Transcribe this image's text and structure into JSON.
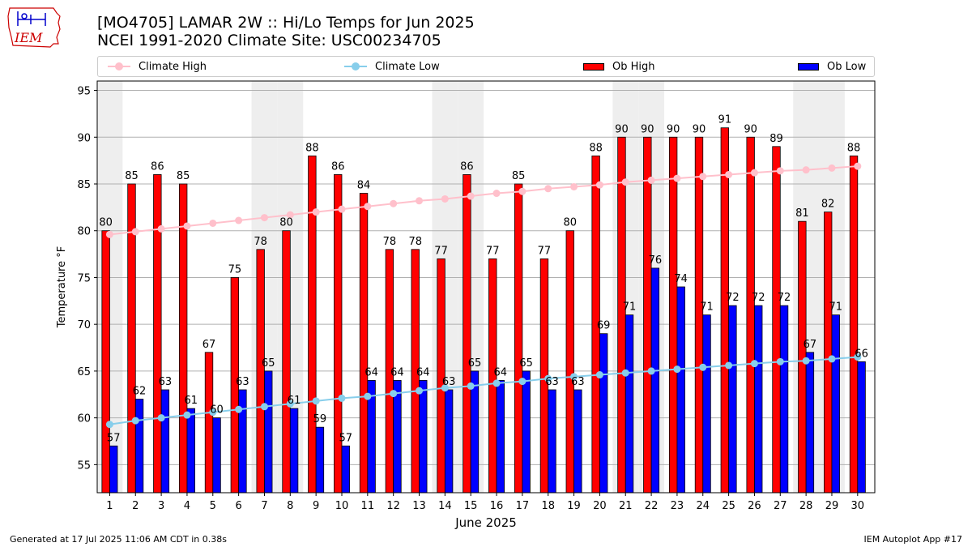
{
  "header": {
    "logo_text": "IEM",
    "title_line1": "[MO4705] LAMAR 2W :: Hi/Lo Temps for Jun 2025",
    "title_line2": "NCEI 1991-2020 Climate Site: USC00234705"
  },
  "legend": {
    "climate_high": "Climate High",
    "climate_low": "Climate Low",
    "ob_high": "Ob High",
    "ob_low": "Ob Low"
  },
  "colors": {
    "ob_high": "#ff0000",
    "ob_low": "#0000ff",
    "climate_high": "#ffc0cb",
    "climate_low": "#87ceeb",
    "weekend_band": "#eeeeee",
    "grid": "#b0b0b0"
  },
  "footer": {
    "generated": "Generated at 17 Jul 2025 11:06 AM CDT in 0.38s",
    "app": "IEM Autoplot App #17"
  },
  "chart_data": {
    "type": "bar",
    "title": "[MO4705] LAMAR 2W :: Hi/Lo Temps for Jun 2025",
    "subtitle": "NCEI 1991-2020 Climate Site: USC00234705",
    "xlabel": "June 2025",
    "ylabel": "Temperature °F",
    "ylim": [
      52,
      96
    ],
    "yticks": [
      55,
      60,
      65,
      70,
      75,
      80,
      85,
      90,
      95
    ],
    "grid": true,
    "legend_position": "top",
    "categories": [
      "1",
      "2",
      "3",
      "4",
      "5",
      "6",
      "7",
      "8",
      "9",
      "10",
      "11",
      "12",
      "13",
      "14",
      "15",
      "16",
      "17",
      "18",
      "19",
      "20",
      "21",
      "22",
      "23",
      "24",
      "25",
      "26",
      "27",
      "28",
      "29",
      "30"
    ],
    "shaded_days": [
      "1",
      "7",
      "8",
      "14",
      "15",
      "21",
      "22",
      "28",
      "29"
    ],
    "series": [
      {
        "name": "Ob High",
        "kind": "bar",
        "values": [
          80,
          85,
          86,
          85,
          67,
          75,
          78,
          80,
          88,
          86,
          84,
          78,
          78,
          77,
          86,
          77,
          85,
          77,
          80,
          88,
          90,
          90,
          90,
          90,
          91,
          90,
          89,
          81,
          82,
          88
        ]
      },
      {
        "name": "Ob Low",
        "kind": "bar",
        "values": [
          57,
          62,
          63,
          61,
          60,
          63,
          65,
          61,
          59,
          57,
          64,
          64,
          64,
          63,
          65,
          64,
          65,
          63,
          63,
          69,
          71,
          76,
          74,
          71,
          72,
          72,
          72,
          67,
          71,
          66
        ]
      },
      {
        "name": "Climate High",
        "kind": "line",
        "values": [
          79.6,
          79.9,
          80.2,
          80.5,
          80.8,
          81.1,
          81.4,
          81.7,
          82.0,
          82.3,
          82.6,
          82.9,
          83.2,
          83.4,
          83.7,
          84.0,
          84.2,
          84.5,
          84.7,
          84.9,
          85.2,
          85.4,
          85.6,
          85.8,
          86.0,
          86.2,
          86.4,
          86.5,
          86.7,
          86.9
        ]
      },
      {
        "name": "Climate Low",
        "kind": "line",
        "values": [
          59.3,
          59.7,
          60.0,
          60.3,
          60.6,
          60.9,
          61.2,
          61.5,
          61.8,
          62.1,
          62.3,
          62.6,
          62.9,
          63.2,
          63.4,
          63.7,
          63.9,
          64.2,
          64.4,
          64.6,
          64.8,
          65.0,
          65.2,
          65.4,
          65.6,
          65.8,
          66.0,
          66.1,
          66.3,
          66.5
        ]
      }
    ]
  }
}
